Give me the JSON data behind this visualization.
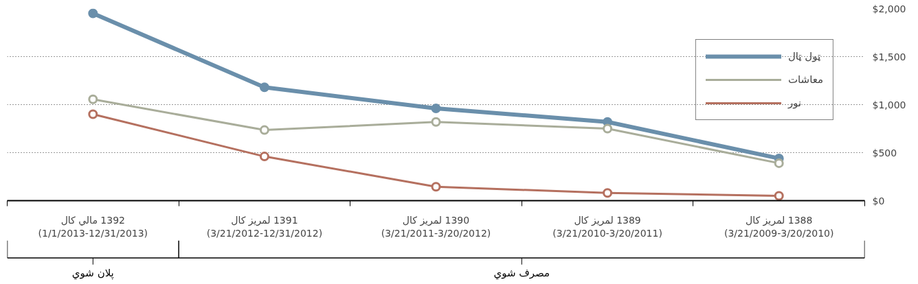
{
  "chart_data": {
    "type": "line",
    "categories": [
      "1392 مالي كال\n(1/1/2013-12/31/2013)",
      "1391 لمريز كال\n(3/21/2012-12/31/2012)",
      "1390 لمريز كال\n(3/21/2011-3/20/2012)",
      "1389 لمريز كال\n(3/21/2010-3/20/2011)",
      "1388 لمريز كال\n(3/21/2009-3/20/2010)"
    ],
    "series": [
      {
        "name": "ټول ټال",
        "color": "#6a8fab",
        "values": [
          1950,
          1180,
          960,
          820,
          440
        ]
      },
      {
        "name": "معاشات",
        "color": "#a9ad9a",
        "values": [
          1055,
          735,
          820,
          750,
          390
        ]
      },
      {
        "name": "نور",
        "color": "#b5705f",
        "values": [
          900,
          460,
          145,
          80,
          50
        ]
      }
    ],
    "ylim": [
      0,
      2000
    ],
    "yticks": [
      {
        "value": 0,
        "label": "$0"
      },
      {
        "value": 500,
        "label": "$500"
      },
      {
        "value": 1000,
        "label": "$1,000"
      },
      {
        "value": 1500,
        "label": "$1,500"
      },
      {
        "value": 2000,
        "label": "$2,000"
      }
    ],
    "grid": "y",
    "legend": "top right",
    "marker": "circle",
    "annotations": [
      "پلان شوي",
      "مصرف شوي"
    ]
  }
}
